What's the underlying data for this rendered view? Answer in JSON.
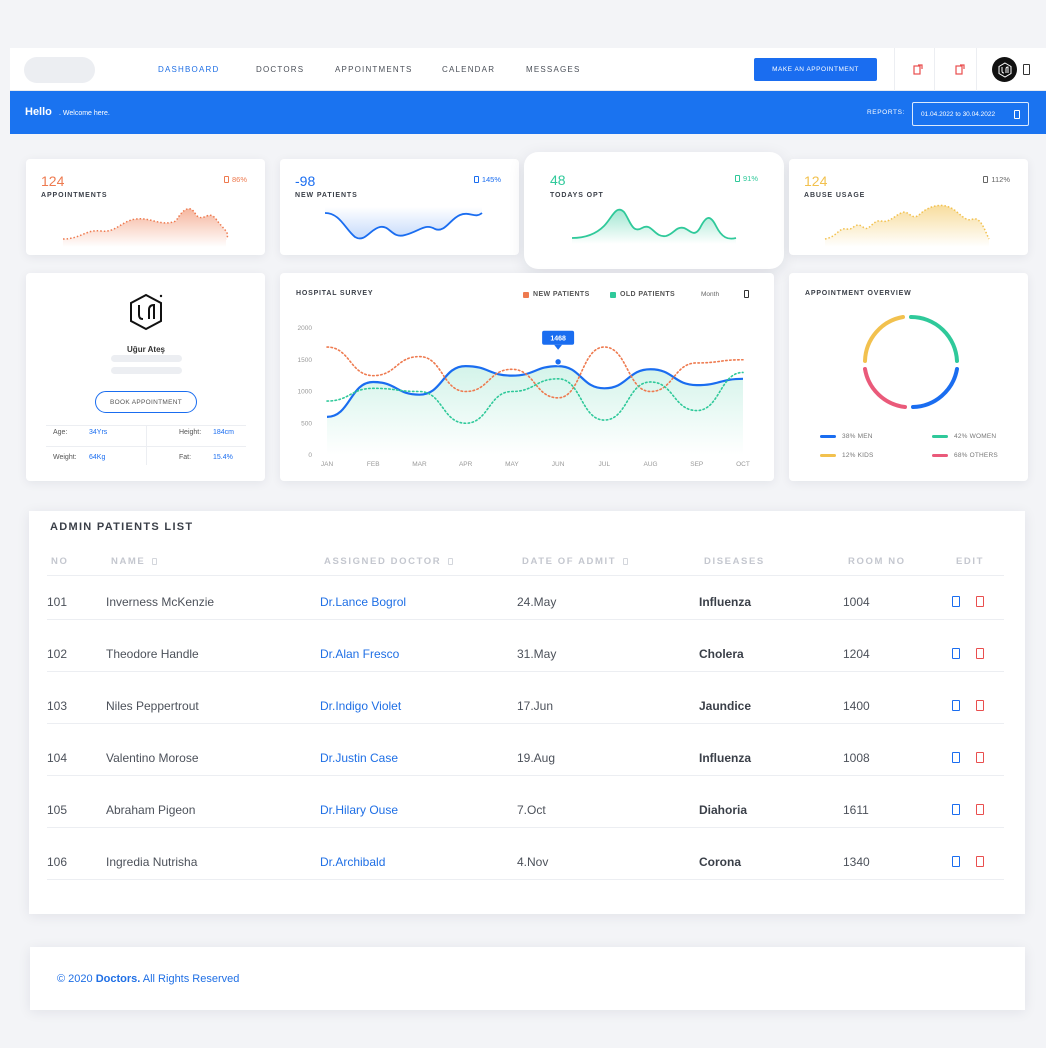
{
  "nav": {
    "items": [
      "DASHBOARD",
      "DOCTORS",
      "APPOINTMENTS",
      "CALENDAR",
      "MESSAGES"
    ],
    "cta": "MAKE AN APPOINTMENT"
  },
  "hello": {
    "title": "Hello",
    "subtitle": ". Welcome here.",
    "reports_label": "REPORTS:",
    "date_range": "01.04.2022 to 30.04.2022"
  },
  "stats": [
    {
      "value": "124",
      "label": "APPOINTMENTS",
      "pct": "86%",
      "color": "#ee7a4f"
    },
    {
      "value": "-98",
      "label": "NEW PATIENTS",
      "pct": "145%",
      "color": "#1a6df0"
    },
    {
      "value": "48",
      "label": "TODAYS OPT",
      "pct": "91%",
      "color": "#2fc99a"
    },
    {
      "value": "124",
      "label": "ABUSE USAGE",
      "pct": "112%",
      "color": "#f2c14e"
    }
  ],
  "profile": {
    "name": "Uğur Ateş",
    "book_button": "BOOK APPOINTMENT",
    "age_label": "Age:",
    "age": "34Yrs",
    "height_label": "Height:",
    "height": "184cm",
    "weight_label": "Weight:",
    "weight": "64Kg",
    "fat_label": "Fat:",
    "fat": "15.4%"
  },
  "survey": {
    "title": "HOSPITAL SURVEY",
    "legend_new": "NEW PATIENTS",
    "legend_old": "OLD PATIENTS",
    "period": "Month",
    "tooltip": "1468"
  },
  "chart_data": {
    "type": "line",
    "title": "HOSPITAL SURVEY",
    "categories": [
      "JAN",
      "FEB",
      "MAR",
      "APR",
      "MAY",
      "JUN",
      "JUL",
      "AUG",
      "SEP",
      "OCT"
    ],
    "yticks": [
      "2000",
      "1500",
      "1000",
      "500",
      "0"
    ],
    "ylim": [
      0,
      2000
    ],
    "series": [
      {
        "name": "",
        "values": [
          600,
          1150,
          950,
          1400,
          1250,
          1400,
          1050,
          1350,
          1100,
          1200
        ]
      },
      {
        "name": "NEW PATIENTS",
        "values": [
          1700,
          1250,
          1550,
          1000,
          1350,
          900,
          1700,
          1000,
          1450,
          1500
        ]
      },
      {
        "name": "OLD PATIENTS",
        "values": [
          850,
          1050,
          1000,
          500,
          1000,
          1200,
          550,
          1150,
          700,
          1300
        ]
      }
    ],
    "highlight": {
      "category": "JUN",
      "value": 1468
    },
    "legend": "top-right"
  },
  "overview": {
    "title": "APPOINTMENT OVERVIEW",
    "items": [
      {
        "label": "38% MEN",
        "color": "#1a6df0",
        "fraction": 0.38
      },
      {
        "label": "42% WOMEN",
        "color": "#2fc99a",
        "fraction": 0.42
      },
      {
        "label": "12% KIDS",
        "color": "#f2c14e",
        "fraction": 0.12
      },
      {
        "label": "68% OTHERS",
        "color": "#ea5a7a",
        "fraction": 0.68
      }
    ]
  },
  "patients": {
    "title": "ADMIN PATIENTS LIST",
    "headers": [
      "NO",
      "NAME",
      "ASSIGNED DOCTOR",
      "DATE OF ADMIT",
      "DISEASES",
      "ROOM NO",
      "EDIT"
    ],
    "rows": [
      {
        "no": "101",
        "name": "Inverness McKenzie",
        "doctor": "Dr.Lance Bogrol",
        "date": "24.May",
        "disease": "Influenza",
        "room": "1004"
      },
      {
        "no": "102",
        "name": "Theodore Handle",
        "doctor": "Dr.Alan Fresco",
        "date": "31.May",
        "disease": "Cholera",
        "room": "1204"
      },
      {
        "no": "103",
        "name": "Niles Peppertrout",
        "doctor": "Dr.Indigo Violet",
        "date": "17.Jun",
        "disease": "Jaundice",
        "room": "1400"
      },
      {
        "no": "104",
        "name": "Valentino Morose",
        "doctor": "Dr.Justin Case",
        "date": "19.Aug",
        "disease": "Influenza",
        "room": "1008"
      },
      {
        "no": "105",
        "name": "Abraham Pigeon",
        "doctor": "Dr.Hilary Ouse",
        "date": "7.Oct",
        "disease": "Diahoria",
        "room": "1611"
      },
      {
        "no": "106",
        "name": "Ingredia Nutrisha",
        "doctor": "Dr.Archibald",
        "date": "4.Nov",
        "disease": "Corona",
        "room": "1340"
      }
    ]
  },
  "footer": {
    "prefix": "© 2020 ",
    "brand": "Doctors.",
    "suffix": " All Rights Reserved"
  },
  "colors": {
    "primary": "#1a6df0",
    "new": "#ee7a4f",
    "old": "#2fc99a",
    "danger": "#e94e4e"
  }
}
